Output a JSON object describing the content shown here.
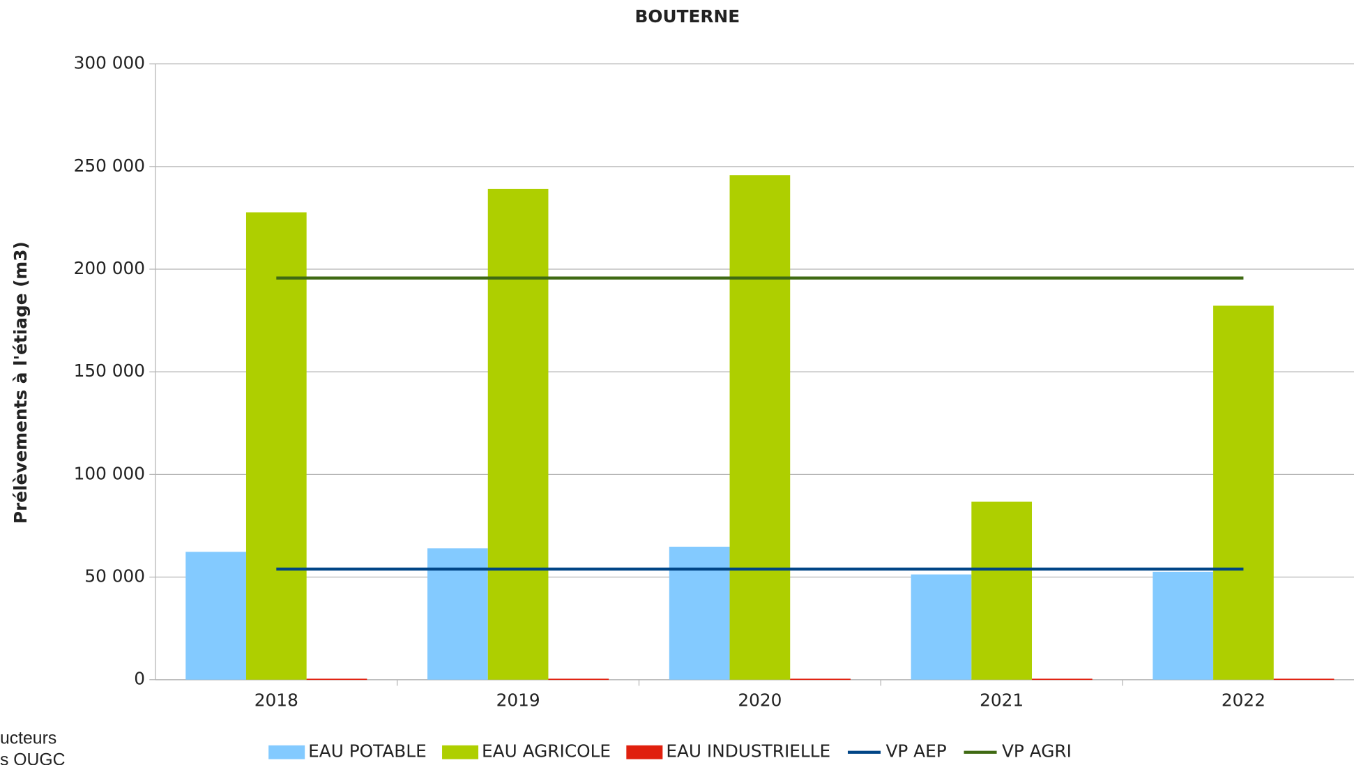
{
  "chart_data": {
    "type": "bar",
    "title": "BOUTERNE",
    "y_label": "Prélèvements à l'étiage (m3)",
    "categories": [
      "2018",
      "2019",
      "2020",
      "2021",
      "2022"
    ],
    "series": [
      {
        "name": "EAU POTABLE",
        "color": "#83caff",
        "type": "bar",
        "values": [
          62300,
          64000,
          64800,
          51300,
          52600
        ]
      },
      {
        "name": "EAU AGRICOLE",
        "color": "#aecf00",
        "type": "bar",
        "values": [
          227700,
          239100,
          245800,
          86700,
          182200
        ]
      },
      {
        "name": "EAU INDUSTRIELLE",
        "color": "#e0200e",
        "type": "bar",
        "values": [
          500,
          500,
          500,
          500,
          500
        ]
      },
      {
        "name": "VP AEP",
        "color": "#004586",
        "type": "line",
        "values": [
          53900,
          53900,
          53900,
          53900,
          53900
        ]
      },
      {
        "name": "VP AGRI",
        "color": "#3f6a13",
        "type": "line",
        "values": [
          195700,
          195700,
          195700,
          195700,
          195700
        ]
      }
    ],
    "ylim": [
      0,
      300000
    ],
    "yticks": [
      0,
      {
        "value": 50000,
        "label": "50 000"
      },
      {
        "value": 100000,
        "label": "100 000"
      },
      {
        "value": 150000,
        "label": "150 000"
      },
      {
        "value": 200000,
        "label": "200 000"
      },
      {
        "value": 250000,
        "label": "250 000"
      },
      {
        "value": 300000,
        "label": "300 000"
      }
    ],
    "grid": true,
    "legend": "bottom",
    "notes": [
      "ucteurs",
      "s OUGC"
    ]
  }
}
